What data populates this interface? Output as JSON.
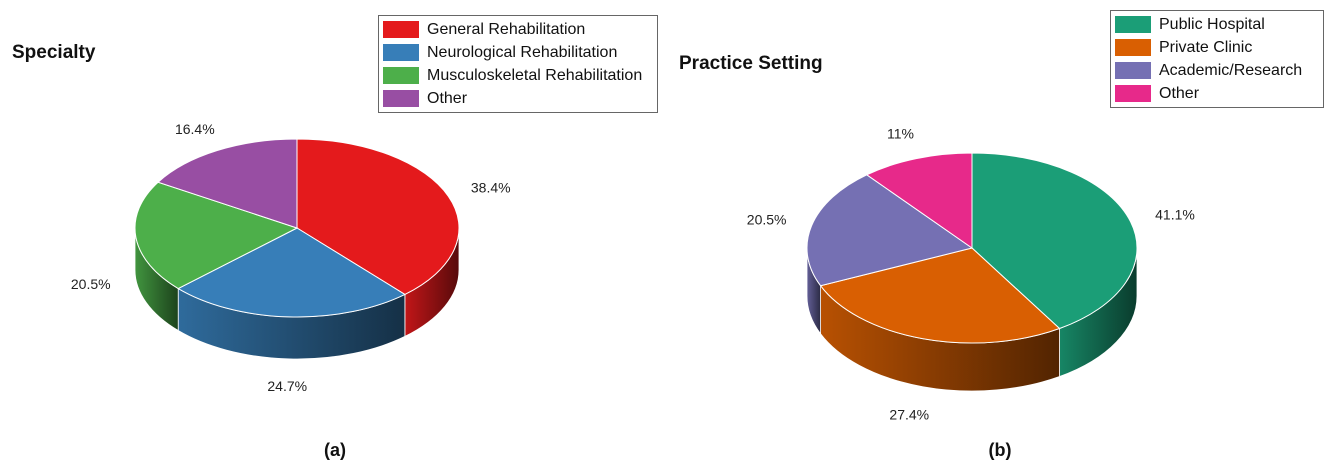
{
  "chart_data": [
    {
      "type": "pie",
      "title": "Specialty",
      "panel_label": "(a)",
      "legend_position": "top-right",
      "categories": [
        "General Rehabilitation",
        "Neurological Rehabilitation",
        "Musculoskeletal Rehabilitation",
        "Other"
      ],
      "values": [
        38.4,
        24.7,
        20.5,
        16.4
      ],
      "labels": [
        "38.4%",
        "24.7%",
        "20.5%",
        "16.4%"
      ],
      "colors": [
        "#e41a1c",
        "#377eb8",
        "#4daf4a",
        "#984ea3"
      ]
    },
    {
      "type": "pie",
      "title": "Practice Setting",
      "panel_label": "(b)",
      "legend_position": "top-right",
      "categories": [
        "Public Hospital",
        "Private Clinic",
        "Academic/Research",
        "Other"
      ],
      "values": [
        41.1,
        27.4,
        20.5,
        11
      ],
      "labels": [
        "41.1%",
        "27.4%",
        "20.5%",
        "11%"
      ],
      "colors": [
        "#1b9e77",
        "#d95f02",
        "#7570b3",
        "#e7298a"
      ]
    }
  ]
}
